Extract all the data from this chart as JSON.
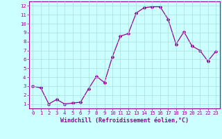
{
  "x": [
    0,
    1,
    2,
    3,
    4,
    5,
    6,
    7,
    8,
    9,
    10,
    11,
    12,
    13,
    14,
    15,
    16,
    17,
    18,
    19,
    20,
    21,
    22,
    23
  ],
  "y": [
    3.0,
    2.8,
    1.0,
    1.5,
    1.0,
    1.1,
    1.2,
    2.7,
    4.1,
    3.4,
    6.3,
    8.6,
    8.9,
    11.2,
    11.8,
    11.9,
    11.9,
    10.5,
    7.7,
    9.1,
    7.5,
    7.0,
    5.8,
    6.9
  ],
  "line_color": "#990099",
  "marker": "D",
  "marker_size": 2.0,
  "linewidth": 0.9,
  "xlabel": "Windchill (Refroidissement éolien,°C)",
  "xlim": [
    -0.5,
    23.5
  ],
  "ylim": [
    0.5,
    12.5
  ],
  "xticks": [
    0,
    1,
    2,
    3,
    4,
    5,
    6,
    7,
    8,
    9,
    10,
    11,
    12,
    13,
    14,
    15,
    16,
    17,
    18,
    19,
    20,
    21,
    22,
    23
  ],
  "yticks": [
    1,
    2,
    3,
    4,
    5,
    6,
    7,
    8,
    9,
    10,
    11,
    12
  ],
  "bg_color": "#ccffff",
  "grid_color": "#aadddd",
  "tick_color": "#990099",
  "label_color": "#990099",
  "tick_fontsize": 5.2,
  "xlabel_fontsize": 6.0,
  "border_color": "#990099"
}
